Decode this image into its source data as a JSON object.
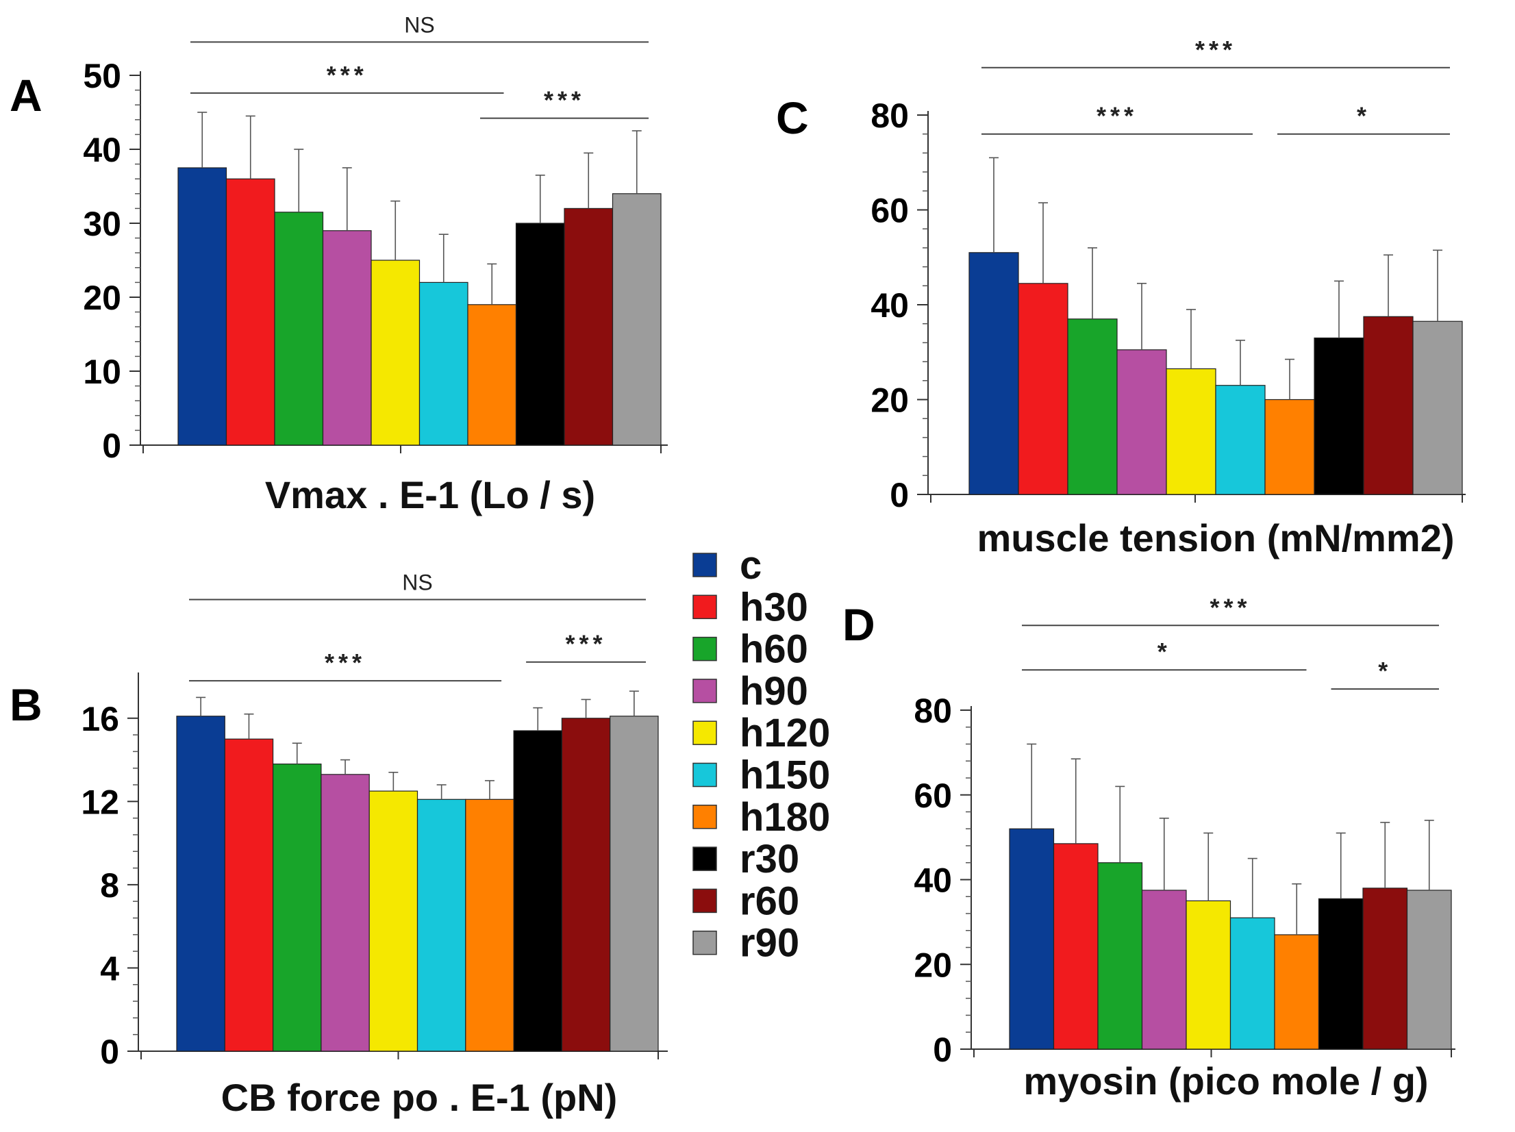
{
  "colors": {
    "c": "#0a3d94",
    "h30": "#f11b1e",
    "h60": "#18a52a",
    "h90": "#b64fa2",
    "h120": "#f5e800",
    "h150": "#17c7da",
    "h180": "#ff8000",
    "r30": "#000000",
    "r60": "#8b0d0d",
    "r90": "#9c9c9c"
  },
  "legend": {
    "items": [
      {
        "key": "c",
        "label": "c"
      },
      {
        "key": "h30",
        "label": "h30"
      },
      {
        "key": "h60",
        "label": "h60"
      },
      {
        "key": "h90",
        "label": "h90"
      },
      {
        "key": "h120",
        "label": "h120"
      },
      {
        "key": "h150",
        "label": "h150"
      },
      {
        "key": "h180",
        "label": "h180"
      },
      {
        "key": "r30",
        "label": "r30"
      },
      {
        "key": "r60",
        "label": "r60"
      },
      {
        "key": "r90",
        "label": "r90"
      }
    ]
  },
  "chart_data": [
    {
      "panel": "A",
      "type": "bar",
      "title": "",
      "xlabel": "Vmax . E-1 (Lo / s)",
      "ylabel": "",
      "ylim": [
        0,
        50
      ],
      "yticks": [
        0,
        10,
        20,
        30,
        40,
        50
      ],
      "categories": [
        "c",
        "h30",
        "h60",
        "h90",
        "h120",
        "h150",
        "h180",
        "r30",
        "r60",
        "r90"
      ],
      "values": [
        37.5,
        36,
        31.5,
        29,
        25,
        22,
        19,
        30,
        32,
        34
      ],
      "errors": [
        7.5,
        8.5,
        8.5,
        8.5,
        8,
        6.5,
        5.5,
        6.5,
        7.5,
        8.5
      ],
      "annotations": [
        {
          "text": "NS",
          "from": 0,
          "to": 9,
          "y": 54.5,
          "style": "ns"
        },
        {
          "text": "***",
          "from": 0,
          "to": 6,
          "y": 47.6,
          "style": "sig"
        },
        {
          "text": "***",
          "from": 6,
          "to": 9,
          "y": 44.2,
          "style": "sig"
        }
      ]
    },
    {
      "panel": "B",
      "type": "bar",
      "title": "",
      "xlabel": "CB force po . E-1 (pN)",
      "ylabel": "",
      "ylim": [
        0,
        18
      ],
      "yticks": [
        0,
        4,
        8,
        12,
        16
      ],
      "categories": [
        "c",
        "h30",
        "h60",
        "h90",
        "h120",
        "h150",
        "h180",
        "r30",
        "r60",
        "r90"
      ],
      "values": [
        16.1,
        15,
        13.8,
        13.3,
        12.5,
        12.1,
        12.1,
        15.4,
        16,
        16.1
      ],
      "errors": [
        0.9,
        1.2,
        1.0,
        0.7,
        0.9,
        0.7,
        0.9,
        1.1,
        0.9,
        1.2
      ],
      "annotations": [
        {
          "text": "NS",
          "from": 0,
          "to": 9,
          "y": 21.7,
          "style": "ns"
        },
        {
          "text": "***",
          "from": 0,
          "to": 6,
          "y": 17.8,
          "style": "sig"
        },
        {
          "text": "***",
          "from": 7,
          "to": 9,
          "y": 18.7,
          "style": "sig"
        }
      ]
    },
    {
      "panel": "C",
      "type": "bar",
      "title": "",
      "xlabel": "muscle tension (mN/mm2)",
      "ylabel": "",
      "ylim": [
        0,
        80
      ],
      "yticks": [
        0,
        20,
        40,
        60,
        80
      ],
      "categories": [
        "c",
        "h30",
        "h60",
        "h90",
        "h120",
        "h150",
        "h180",
        "r30",
        "r60",
        "r90"
      ],
      "values": [
        51,
        44.5,
        37,
        30.5,
        26.5,
        23,
        20,
        33,
        37.5,
        36.5
      ],
      "errors": [
        20,
        17,
        15,
        14,
        12.5,
        9.5,
        8.5,
        12,
        13,
        15
      ],
      "annotations": [
        {
          "text": "***",
          "from": 0,
          "to": 9,
          "y": 90,
          "style": "sig"
        },
        {
          "text": "***",
          "from": 0,
          "to": 5,
          "y": 76,
          "style": "sig"
        },
        {
          "text": "*",
          "from": 6,
          "to": 9,
          "y": 76,
          "style": "sig"
        }
      ]
    },
    {
      "panel": "D",
      "type": "bar",
      "title": "",
      "xlabel": "myosin (pico mole / g)",
      "ylabel": "",
      "ylim": [
        0,
        80
      ],
      "yticks": [
        0,
        20,
        40,
        60,
        80
      ],
      "categories": [
        "c",
        "h30",
        "h60",
        "h90",
        "h120",
        "h150",
        "h180",
        "r30",
        "r60",
        "r90"
      ],
      "values": [
        52,
        48.5,
        44,
        37.5,
        35,
        31,
        27,
        35.5,
        38,
        37.5
      ],
      "errors": [
        20,
        20,
        18,
        17,
        16,
        14,
        12,
        15.5,
        15.5,
        16.5
      ],
      "annotations": [
        {
          "text": "***",
          "from": 0,
          "to": 9,
          "y": 100,
          "style": "sig"
        },
        {
          "text": "*",
          "from": 0,
          "to": 6,
          "y": 89.5,
          "style": "sig"
        },
        {
          "text": "*",
          "from": 7,
          "to": 9,
          "y": 85,
          "style": "sig"
        }
      ]
    }
  ]
}
